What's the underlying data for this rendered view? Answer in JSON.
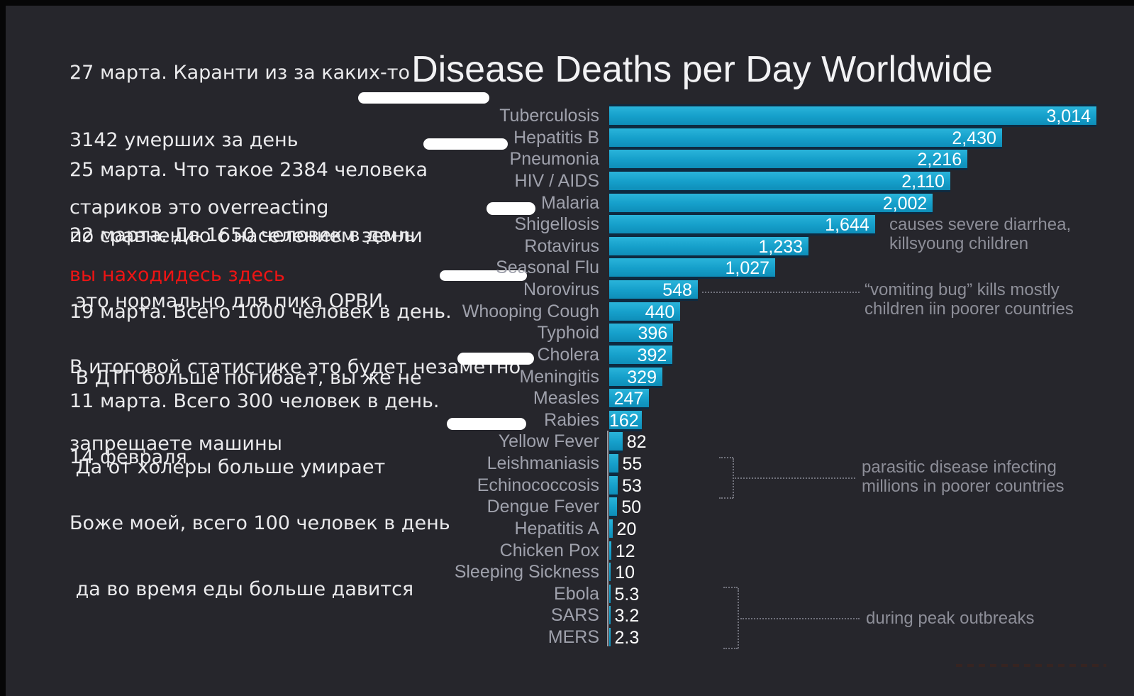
{
  "title": "Disease Deaths per Day Worldwide",
  "left_notes": {
    "text_color": "#eaeaec",
    "highlight_color": "#ee1414",
    "blocks": [
      {
        "lines": [
          "27 марта. Каранти из за каких-то",
          "3142 умерших за день",
          "стариков это overreacting"
        ],
        "red_line": "вы находидесь здесь"
      },
      {
        "lines": [
          "25 марта. Что такое 2384 человека",
          "по сравнению с населением земли"
        ]
      },
      {
        "lines": [
          "22 марта. Да 1650 человек в день",
          " это нормально для пика ОРВИ.",
          "В итоговой статистике это будет незаметно"
        ]
      },
      {
        "lines": [
          "19 марта. Всего 1000 человек в день.",
          " В ДТП больше погибает, вы же не",
          "запрещаете машины"
        ]
      },
      {
        "lines": [
          "11 марта. Всего 300 человек в день.",
          " Да от холеры больше умирает"
        ]
      },
      {
        "lines": [
          "14 февраля",
          "Боже моей, всего 100 человек в день",
          " да во время еды больше давится"
        ]
      }
    ]
  },
  "chart_data": {
    "type": "bar",
    "orientation": "horizontal",
    "title": "Disease Deaths per Day Worldwide",
    "categories": [
      "Tuberculosis",
      "Hepatitis B",
      "Pneumonia",
      "HIV / AIDS",
      "Malaria",
      "Shigellosis",
      "Rotavirus",
      "Seasonal Flu",
      "Norovirus",
      "Whooping Cough",
      "Typhoid",
      "Cholera",
      "Meningitis",
      "Measles",
      "Rabies",
      "Yellow Fever",
      "Leishmaniasis",
      "Echinococcosis",
      "Dengue Fever",
      "Hepatitis A",
      "Chicken Pox",
      "Sleeping Sickness",
      "Ebola",
      "SARS",
      "MERS"
    ],
    "values": [
      3014,
      2430,
      2216,
      2110,
      2002,
      1644,
      1233,
      1027,
      548,
      440,
      396,
      392,
      329,
      247,
      162,
      82,
      55,
      53,
      50,
      20,
      12,
      10,
      5.3,
      3.2,
      2.3
    ],
    "value_labels": [
      "3,014",
      "2,430",
      "2,216",
      "2,110",
      "2,002",
      "1,644",
      "1,233",
      "1,027",
      "548",
      "440",
      "396",
      "392",
      "329",
      "247",
      "162",
      "82",
      "55",
      "53",
      "50",
      "20",
      "12",
      "10",
      "5.3",
      "3.2",
      "2.3"
    ],
    "xlim": [
      0,
      3014
    ],
    "grid": false,
    "legend": "none",
    "colors": {
      "background": "#26262c",
      "bar_top": "#2ab4da",
      "bar_bottom": "#0e8eb9",
      "bar_edge": "#0e2a40",
      "label": "#9fa1ac",
      "value": "#ffffff",
      "annotation": "#8d8e98"
    },
    "annotations": [
      {
        "target": "Shigellosis",
        "lines": [
          "causes severe diarrhea,",
          "killsyoung children"
        ]
      },
      {
        "target": "Norovirus",
        "lines": [
          "“vomiting bug” kills mostly",
          "children iin poorer countries"
        ]
      },
      {
        "target": "Leishmaniasis / Echinococcosis",
        "lines": [
          "parasitic disease infecting",
          "millions in poorer countries"
        ]
      },
      {
        "target": "Ebola / SARS / MERS",
        "lines": [
          "during peak outbreaks"
        ]
      }
    ]
  }
}
